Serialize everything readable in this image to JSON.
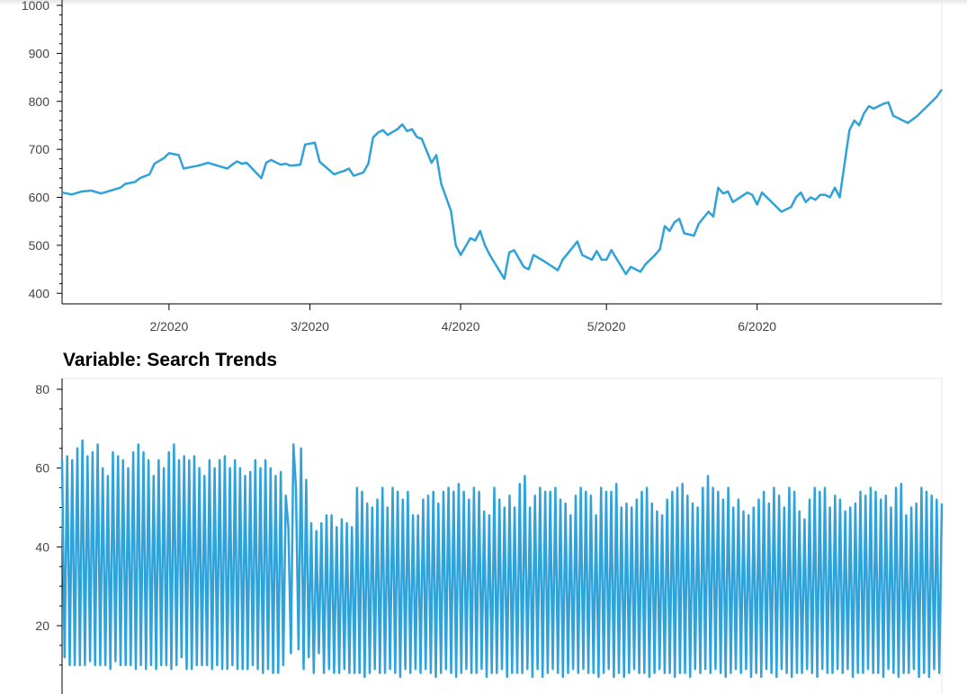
{
  "chart_data": [
    {
      "type": "line",
      "title": "",
      "xlabel": "",
      "ylabel": "",
      "ylim": [
        378,
        1015
      ],
      "yticks": [
        "400",
        "500",
        "600",
        "700",
        "800",
        "900",
        "1000"
      ],
      "xticks": [
        "2/2020",
        "3/2020",
        "4/2020",
        "5/2020",
        "6/2020"
      ],
      "color": "#30a2da",
      "grid": false,
      "series": [
        {
          "name": "",
          "x": [
            0,
            2,
            4,
            6,
            8,
            12,
            13,
            15,
            16,
            18,
            19,
            21,
            22,
            24,
            25,
            27,
            28,
            30,
            34,
            35,
            36,
            37,
            38,
            41,
            42,
            43,
            45,
            46,
            47,
            49,
            50,
            52,
            53,
            56,
            57,
            58,
            59,
            60,
            62,
            63,
            64,
            65,
            66,
            67,
            69,
            70,
            71,
            72,
            73,
            74,
            76,
            77,
            78,
            80,
            81,
            82,
            84,
            85,
            86,
            87,
            88,
            91,
            92,
            93,
            95,
            96,
            97,
            99,
            102,
            103,
            105,
            106,
            107,
            109,
            110,
            111,
            112,
            113,
            116,
            117,
            119,
            120,
            122,
            123,
            124,
            125,
            126,
            127,
            128,
            130,
            131,
            133,
            134,
            135,
            136,
            137,
            138,
            141,
            142,
            143,
            144,
            145,
            148,
            150,
            151,
            152,
            153,
            154,
            155,
            156,
            157,
            158,
            159,
            160,
            162,
            163,
            164,
            165,
            166,
            167,
            169,
            170,
            171,
            172,
            173,
            174,
            176,
            177,
            178,
            179,
            180,
            181
          ],
          "y": [
            610,
            606,
            612,
            614,
            608,
            620,
            628,
            632,
            640,
            648,
            670,
            682,
            692,
            688,
            660,
            664,
            666,
            672,
            660,
            668,
            675,
            670,
            672,
            640,
            672,
            678,
            668,
            670,
            666,
            668,
            710,
            714,
            674,
            648,
            652,
            655,
            660,
            645,
            652,
            670,
            725,
            735,
            740,
            730,
            742,
            752,
            738,
            742,
            726,
            722,
            672,
            688,
            628,
            572,
            500,
            480,
            515,
            510,
            530,
            500,
            480,
            430,
            485,
            490,
            455,
            450,
            480,
            468,
            448,
            470,
            495,
            508,
            480,
            470,
            488,
            470,
            470,
            490,
            440,
            455,
            445,
            460,
            480,
            492,
            540,
            530,
            548,
            555,
            525,
            520,
            545,
            570,
            560,
            620,
            608,
            612,
            590,
            610,
            605,
            585,
            610,
            600,
            570,
            580,
            600,
            610,
            590,
            600,
            595,
            605,
            605,
            600,
            620,
            600,
            740,
            760,
            750,
            775,
            790,
            785,
            795,
            798,
            770,
            765,
            760,
            755,
            770,
            780,
            790,
            800,
            810,
            825
          ]
        }
      ]
    },
    {
      "type": "line",
      "title": "Variable: Search Trends",
      "xlabel": "",
      "ylabel": "",
      "ylim": [
        7,
        83
      ],
      "yticks": [
        "20",
        "40",
        "60",
        "80"
      ],
      "color": "#30a2da",
      "grid": false,
      "series": [
        {
          "name": "",
          "values": [
            62,
            12,
            63,
            10,
            62,
            10,
            65,
            10,
            67,
            10,
            63,
            11,
            64,
            10,
            66,
            10,
            60,
            10,
            58,
            9,
            64,
            11,
            63,
            10,
            62,
            10,
            60,
            10,
            64,
            9,
            66,
            10,
            64,
            9,
            62,
            10,
            58,
            9,
            62,
            10,
            60,
            10,
            64,
            9,
            66,
            10,
            62,
            12,
            63,
            9,
            62,
            9,
            63,
            10,
            60,
            10,
            58,
            10,
            62,
            9,
            60,
            10,
            62,
            9,
            63,
            9,
            60,
            10,
            62,
            9,
            60,
            9,
            58,
            9,
            59,
            10,
            62,
            9,
            60,
            8,
            62,
            9,
            60,
            8,
            58,
            8,
            59,
            10,
            53,
            45,
            13,
            66,
            55,
            14,
            65,
            9,
            57,
            12,
            46,
            8,
            44,
            13,
            46,
            8,
            48,
            9,
            48,
            8,
            45,
            8,
            47,
            9,
            46,
            8,
            45,
            8,
            55,
            8,
            54,
            7,
            51,
            8,
            50,
            9,
            52,
            8,
            55,
            8,
            50,
            9,
            55,
            8,
            54,
            7,
            52,
            9,
            54,
            8,
            48,
            9,
            48,
            8,
            52,
            9,
            53,
            8,
            54,
            7,
            51,
            8,
            54,
            9,
            55,
            8,
            54,
            7,
            56,
            8,
            54,
            9,
            52,
            8,
            55,
            8,
            54,
            9,
            49,
            7,
            48,
            8,
            55,
            8,
            52,
            9,
            50,
            7,
            53,
            8,
            50,
            8,
            56,
            8,
            58,
            9,
            50,
            7,
            53,
            9,
            55,
            7,
            54,
            8,
            54,
            9,
            55,
            8,
            52,
            7,
            51,
            8,
            48,
            9,
            53,
            8,
            55,
            9,
            54,
            8,
            53,
            8,
            48,
            7,
            55,
            8,
            54,
            9,
            54,
            7,
            56,
            8,
            50,
            7,
            51,
            8,
            50,
            9,
            52,
            8,
            54,
            8,
            55,
            7,
            51,
            8,
            49,
            9,
            48,
            8,
            52,
            8,
            54,
            7,
            55,
            8,
            56,
            8,
            53,
            7,
            51,
            9,
            50,
            8,
            55,
            9,
            58,
            8,
            55,
            9,
            54,
            8,
            52,
            7,
            55,
            8,
            50,
            9,
            52,
            8,
            49,
            9,
            48,
            7,
            50,
            8,
            52,
            7,
            54,
            9,
            51,
            8,
            55,
            7,
            53,
            9,
            50,
            8,
            55,
            7,
            54,
            8,
            49,
            8,
            47,
            9,
            52,
            8,
            55,
            7,
            54,
            9,
            55,
            8,
            50,
            8,
            53,
            9,
            52,
            8,
            49,
            9,
            50,
            7,
            51,
            8,
            54,
            8,
            53,
            9,
            55,
            8,
            54,
            8,
            52,
            7,
            53,
            9,
            50,
            8,
            55,
            7,
            56,
            8,
            48,
            8,
            50,
            9,
            51,
            7,
            55,
            8,
            54,
            7,
            53,
            9,
            52,
            8,
            51
          ]
        }
      ]
    }
  ]
}
